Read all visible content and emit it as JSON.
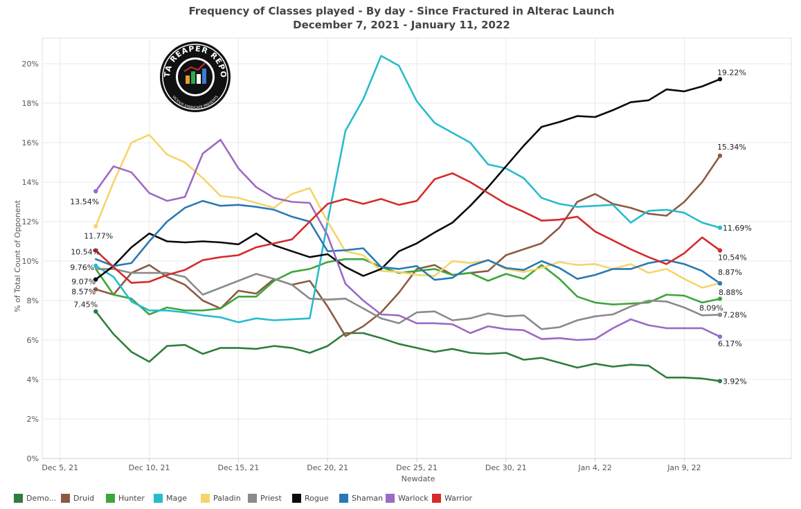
{
  "title_line1": "Frequency of Classes played - By day - Since Fractured in Alterac Launch",
  "title_line2": "December 7, 2021 - January 11, 2022",
  "logo": {
    "text_top": "DATA REAPER REPORT",
    "text_bottom": "VICIOUS SYNDICATE PRESENTS"
  },
  "chart_data": {
    "type": "line",
    "title": "Frequency of Classes played - By day - Since Fractured in Alterac Launch",
    "subtitle": "December 7, 2021 - January 11, 2022",
    "xlabel": "Newdate",
    "ylabel": "% of Total Count of Opponent",
    "x_start": "2021-12-07",
    "x_end": "2022-01-11",
    "x_axis_range": [
      "2021-12-04",
      "2022-01-15"
    ],
    "x_ticks": [
      {
        "date": "2021-12-05",
        "label": "Dec 5, 21"
      },
      {
        "date": "2021-12-10",
        "label": "Dec 10, 21"
      },
      {
        "date": "2021-12-15",
        "label": "Dec 15, 21"
      },
      {
        "date": "2021-12-20",
        "label": "Dec 20, 21"
      },
      {
        "date": "2021-12-25",
        "label": "Dec 25, 21"
      },
      {
        "date": "2021-12-30",
        "label": "Dec 30, 21"
      },
      {
        "date": "2022-01-04",
        "label": "Jan 4, 22"
      },
      {
        "date": "2022-01-09",
        "label": "Jan 9, 22"
      }
    ],
    "ylim": [
      0,
      21.3
    ],
    "y_ticks": [
      0,
      2,
      4,
      6,
      8,
      10,
      12,
      14,
      16,
      18,
      20
    ],
    "y_tick_labels": [
      "0%",
      "2%",
      "4%",
      "6%",
      "8%",
      "10%",
      "12%",
      "14%",
      "16%",
      "18%",
      "20%"
    ],
    "grid": true,
    "legend_position": "bottom",
    "series": [
      {
        "name": "Demo...",
        "color": "#2e7d3e",
        "values": [
          7.45,
          6.3,
          5.4,
          4.9,
          5.7,
          5.75,
          5.3,
          5.6,
          5.6,
          5.55,
          5.7,
          5.6,
          5.35,
          5.7,
          6.35,
          6.35,
          6.1,
          5.8,
          5.6,
          5.4,
          5.55,
          5.35,
          5.3,
          5.35,
          5.0,
          5.1,
          4.85,
          4.6,
          4.8,
          4.65,
          4.75,
          4.7,
          4.1,
          4.1,
          4.05,
          3.92
        ],
        "start_label": "7.45%",
        "end_label": "3.92%"
      },
      {
        "name": "Druid",
        "color": "#8b5a44",
        "values": [
          8.57,
          8.3,
          9.4,
          9.8,
          9.2,
          8.8,
          8.0,
          7.6,
          8.5,
          8.35,
          9.1,
          8.8,
          9.0,
          7.7,
          6.2,
          6.7,
          7.4,
          8.4,
          9.6,
          9.8,
          9.3,
          9.4,
          9.5,
          10.3,
          10.6,
          10.9,
          11.7,
          13.0,
          13.4,
          12.9,
          12.7,
          12.4,
          12.3,
          13.0,
          14.0,
          15.34
        ],
        "start_label": "8.57%",
        "end_label": "15.34%"
      },
      {
        "name": "Hunter",
        "color": "#3ca63a",
        "values": [
          9.6,
          8.3,
          8.1,
          7.3,
          7.65,
          7.5,
          7.5,
          7.6,
          8.2,
          8.2,
          9.0,
          9.45,
          9.6,
          9.95,
          10.1,
          10.1,
          9.7,
          9.4,
          9.5,
          9.6,
          9.3,
          9.4,
          9.0,
          9.35,
          9.1,
          9.8,
          9.1,
          8.2,
          7.9,
          7.8,
          7.85,
          7.9,
          8.3,
          8.25,
          7.9,
          8.09
        ],
        "start_label": "",
        "end_label": "8.09%"
      },
      {
        "name": "Mage",
        "color": "#26bccc",
        "values": [
          9.76,
          9.2,
          7.95,
          7.5,
          7.5,
          7.4,
          7.25,
          7.15,
          6.9,
          7.1,
          7.0,
          7.05,
          7.1,
          12.0,
          16.6,
          18.2,
          20.4,
          19.9,
          18.1,
          17.0,
          16.5,
          16.0,
          14.9,
          14.7,
          14.2,
          13.2,
          12.9,
          12.75,
          12.8,
          12.85,
          11.95,
          12.55,
          12.6,
          12.45,
          11.95,
          11.69
        ],
        "start_label": "9.76%",
        "end_label": "11.69%"
      },
      {
        "name": "Paladin",
        "color": "#f5d56a",
        "values": [
          11.77,
          14.0,
          16.0,
          16.4,
          15.4,
          15.0,
          14.2,
          13.3,
          13.2,
          12.95,
          12.7,
          13.4,
          13.7,
          12.0,
          10.5,
          10.3,
          9.5,
          9.45,
          9.3,
          9.25,
          10.0,
          9.9,
          10.05,
          9.6,
          9.45,
          9.65,
          9.95,
          9.8,
          9.85,
          9.6,
          9.85,
          9.4,
          9.6,
          9.1,
          8.65,
          8.88
        ],
        "start_label": "11.77%",
        "end_label": "8.88%"
      },
      {
        "name": "Priest",
        "color": "#8a8a8a",
        "values": [
          9.6,
          9.6,
          9.4,
          9.4,
          9.4,
          9.2,
          8.3,
          8.65,
          9.0,
          9.35,
          9.1,
          8.8,
          8.1,
          8.05,
          8.1,
          7.6,
          7.1,
          6.85,
          7.4,
          7.45,
          7.0,
          7.1,
          7.35,
          7.2,
          7.25,
          6.55,
          6.65,
          7.0,
          7.2,
          7.3,
          7.7,
          8.0,
          7.95,
          7.65,
          7.25,
          7.28
        ],
        "start_label": "",
        "end_label": "7.28%"
      },
      {
        "name": "Rogue",
        "color": "#0a0a0a",
        "values": [
          9.07,
          9.75,
          10.7,
          11.4,
          11.0,
          10.95,
          11.0,
          10.95,
          10.85,
          11.4,
          10.8,
          10.5,
          10.2,
          10.35,
          9.7,
          9.25,
          9.6,
          10.5,
          10.9,
          11.45,
          11.95,
          12.8,
          13.75,
          14.8,
          15.85,
          16.8,
          17.05,
          17.35,
          17.3,
          17.65,
          18.05,
          18.15,
          18.7,
          18.6,
          18.85,
          19.22
        ],
        "start_label": "9.07%",
        "end_label": "19.22%"
      },
      {
        "name": "Shaman",
        "color": "#2a78b4",
        "values": [
          10.1,
          9.75,
          9.9,
          11.0,
          12.0,
          12.7,
          13.05,
          12.8,
          12.85,
          12.75,
          12.6,
          12.25,
          12.0,
          10.5,
          10.55,
          10.65,
          9.7,
          9.6,
          9.75,
          9.05,
          9.15,
          9.75,
          10.05,
          9.65,
          9.55,
          10.0,
          9.65,
          9.1,
          9.3,
          9.6,
          9.6,
          9.9,
          10.05,
          9.85,
          9.5,
          8.87
        ],
        "start_label": "",
        "end_label": "8.87%"
      },
      {
        "name": "Warlock",
        "color": "#9b6ac4",
        "values": [
          13.54,
          14.8,
          14.5,
          13.45,
          13.05,
          13.25,
          15.45,
          16.15,
          14.7,
          13.75,
          13.2,
          13.0,
          12.95,
          11.3,
          8.85,
          8.0,
          7.3,
          7.25,
          6.85,
          6.85,
          6.8,
          6.35,
          6.7,
          6.55,
          6.5,
          6.05,
          6.1,
          6.0,
          6.05,
          6.6,
          7.05,
          6.75,
          6.6,
          6.6,
          6.6,
          6.17
        ],
        "start_label": "13.54%",
        "end_label": "6.17%"
      },
      {
        "name": "Warrior",
        "color": "#d62a2a",
        "values": [
          10.54,
          9.7,
          8.9,
          8.95,
          9.3,
          9.55,
          10.05,
          10.2,
          10.3,
          10.7,
          10.9,
          11.1,
          12.0,
          12.9,
          13.15,
          12.9,
          13.15,
          12.85,
          13.05,
          14.15,
          14.45,
          14.0,
          13.45,
          12.9,
          12.5,
          12.05,
          12.1,
          12.25,
          11.5,
          11.05,
          10.6,
          10.2,
          9.85,
          10.4,
          11.2,
          10.54
        ],
        "start_label": "10.54%",
        "end_label": "10.54%"
      }
    ]
  }
}
